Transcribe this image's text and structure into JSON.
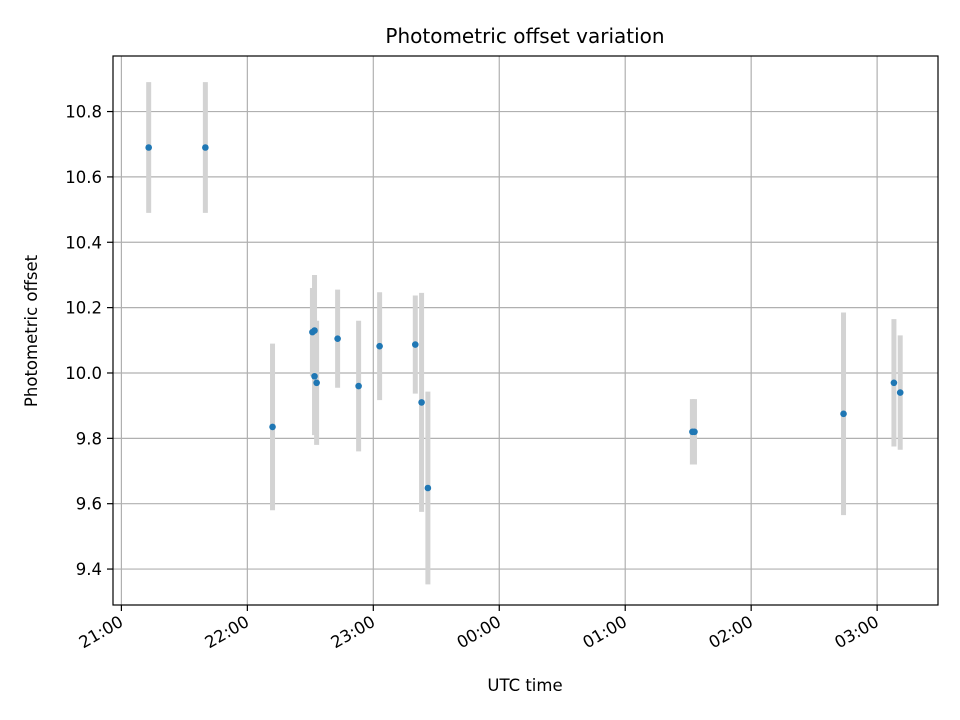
{
  "chart_data": {
    "type": "scatter",
    "title": "Photometric offset variation",
    "xlabel": "UTC time",
    "ylabel": "Photometric offset",
    "xlim": [
      "20:56",
      "03:29"
    ],
    "ylim": [
      9.29,
      10.97
    ],
    "grid": true,
    "xticks": [
      "21:00",
      "22:00",
      "23:00",
      "00:00",
      "01:00",
      "02:00",
      "03:00"
    ],
    "yticks": [
      "9.4",
      "9.6",
      "9.8",
      "10.0",
      "10.2",
      "10.4",
      "10.6",
      "10.8"
    ],
    "errorbar_color": "#d3d3d3",
    "point_color": "#1f77b4",
    "points": [
      {
        "time": "21:13",
        "y": 10.69,
        "err": 0.2
      },
      {
        "time": "21:40",
        "y": 10.69,
        "err": 0.2
      },
      {
        "time": "22:12",
        "y": 9.835,
        "err": 0.255
      },
      {
        "time": "22:31",
        "y": 10.125,
        "err": 0.135
      },
      {
        "time": "22:32",
        "y": 10.13,
        "err": 0.17
      },
      {
        "time": "22:32",
        "y": 9.99,
        "err": 0.18
      },
      {
        "time": "22:33",
        "y": 9.97,
        "err": 0.19
      },
      {
        "time": "22:43",
        "y": 10.105,
        "err": 0.15
      },
      {
        "time": "22:53",
        "y": 9.96,
        "err": 0.2
      },
      {
        "time": "23:03",
        "y": 10.082,
        "err": 0.165
      },
      {
        "time": "23:20",
        "y": 10.087,
        "err": 0.15
      },
      {
        "time": "23:23",
        "y": 9.91,
        "err": 0.335
      },
      {
        "time": "23:26",
        "y": 9.648,
        "err": 0.295
      },
      {
        "time": "01:32",
        "y": 9.82,
        "err": 0.1
      },
      {
        "time": "01:33",
        "y": 9.82,
        "err": 0.1
      },
      {
        "time": "02:44",
        "y": 9.875,
        "err": 0.31
      },
      {
        "time": "03:08",
        "y": 9.97,
        "err": 0.195
      },
      {
        "time": "03:11",
        "y": 9.94,
        "err": 0.175
      }
    ]
  }
}
